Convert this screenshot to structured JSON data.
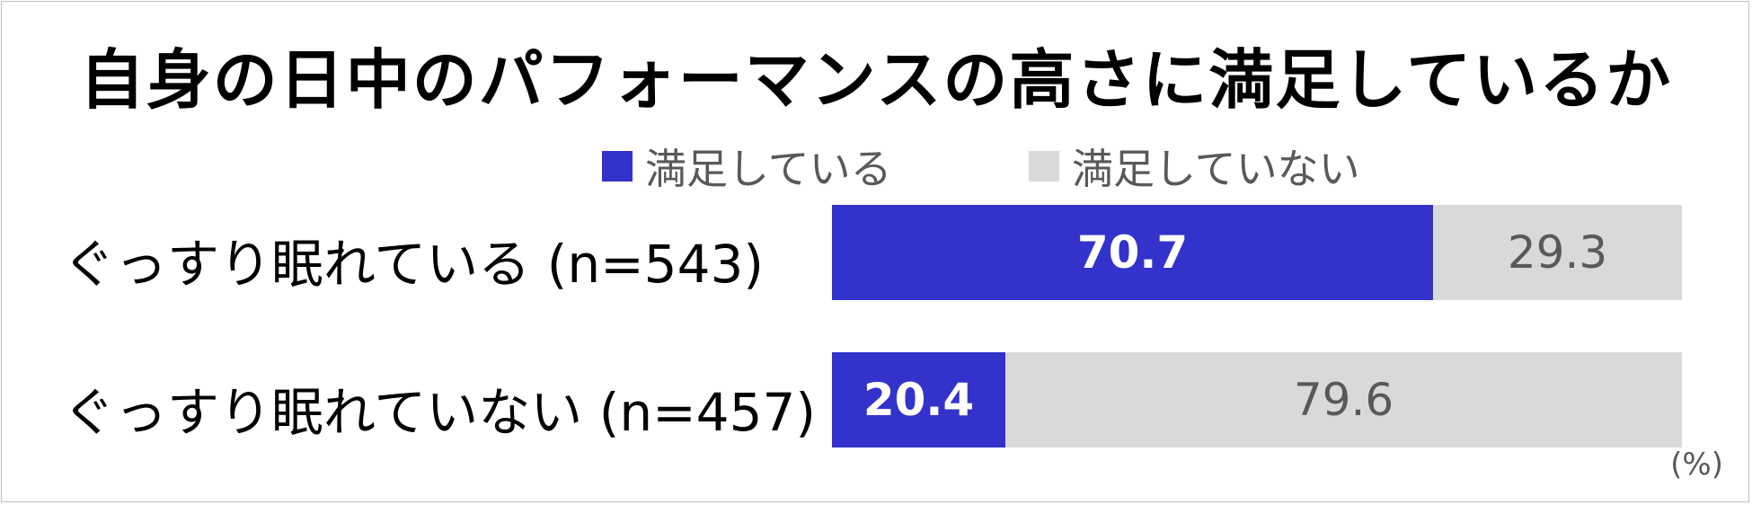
{
  "chart_data": {
    "type": "bar",
    "orientation": "horizontal",
    "stacked": true,
    "title": "自身の日中のパフォーマンスの高さに満足しているか",
    "categories": [
      "ぐっすり眠れている (n=543)",
      "ぐっすり眠れていない (n=457)"
    ],
    "series": [
      {
        "name": "満足している",
        "values": [
          70.7,
          20.4
        ],
        "color": "#3333cc"
      },
      {
        "name": "満足していない",
        "values": [
          29.3,
          79.6
        ],
        "color": "#d9d9d9"
      }
    ],
    "unit": "(%)",
    "xlim": [
      0,
      100
    ],
    "grid": false,
    "legend_position": "top"
  }
}
